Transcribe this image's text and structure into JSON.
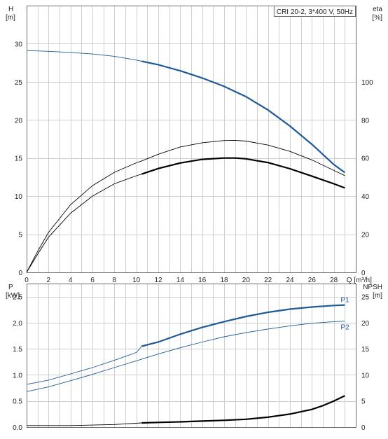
{
  "chart_data": [
    {
      "type": "line",
      "title": "CRI 20-2, 3*400 V, 50Hz",
      "xlabel": "Q [m³/h]",
      "ylabel_left": [
        "H",
        "[m]"
      ],
      "ylabel_right": [
        "eta",
        "[%]"
      ],
      "xlim": [
        0,
        30
      ],
      "ylim": [
        0,
        35
      ],
      "ylim_right": [
        0,
        140
      ],
      "grid": true,
      "x_ticks": [
        "0",
        "2",
        "4",
        "6",
        "8",
        "10",
        "12",
        "14",
        "16",
        "18",
        "20",
        "22",
        "24",
        "26",
        "28"
      ],
      "y_ticks_left": [
        "0",
        "5",
        "10",
        "15",
        "20",
        "25",
        "30"
      ],
      "y_ticks_right": [
        "0",
        "20",
        "40",
        "60",
        "80",
        "100"
      ],
      "series": [
        {
          "axis": "left",
          "color": "#1f5a96",
          "x": [
            0,
            2,
            4,
            6,
            8,
            10,
            10.5,
            12,
            14,
            16,
            18,
            20,
            22,
            24,
            26,
            28,
            29
          ],
          "y": [
            29.1,
            29.0,
            28.85,
            28.65,
            28.35,
            27.85,
            27.7,
            27.25,
            26.45,
            25.5,
            24.4,
            23.05,
            21.3,
            19.2,
            16.8,
            14.15,
            13.1
          ],
          "bold_from": 10.5
        },
        {
          "axis": "right",
          "color": "#000000",
          "x": [
            0,
            1,
            2,
            4,
            6,
            8,
            10,
            10.5,
            12,
            14,
            16,
            18,
            19,
            20,
            22,
            24,
            26,
            28,
            29
          ],
          "y": [
            0,
            11,
            21,
            35.5,
            45.5,
            52.5,
            57.5,
            58.5,
            62,
            65.8,
            68,
            69.2,
            69.3,
            68.9,
            66.8,
            63.5,
            59,
            53.5,
            50.8
          ],
          "bold_from": 99
        },
        {
          "axis": "right",
          "color": "#000000",
          "x": [
            0,
            1,
            2,
            4,
            6,
            8,
            10,
            10.5,
            12,
            14,
            16,
            18,
            19,
            20,
            22,
            24,
            26,
            28,
            29
          ],
          "y": [
            0,
            9.5,
            18.5,
            31,
            40,
            46.5,
            50.7,
            51.6,
            54.5,
            57.4,
            59.3,
            60,
            60,
            59.6,
            57.6,
            54.4,
            50.5,
            46.5,
            44.3
          ],
          "bold_from": 10.5
        }
      ]
    },
    {
      "type": "line",
      "xlabel": "",
      "ylabel_left": [
        "P",
        "[kW]"
      ],
      "ylabel_right": [
        "NPSH",
        "[m]"
      ],
      "xlim": [
        0,
        30
      ],
      "ylim": [
        0,
        2.75
      ],
      "ylim_right": [
        0,
        27.5
      ],
      "grid": true,
      "y_ticks_left": [
        "0.0",
        "0.5",
        "1.0",
        "1.5",
        "2.0",
        "2.5"
      ],
      "y_ticks_right": [
        "0",
        "5",
        "10",
        "15",
        "20",
        "25"
      ],
      "series": [
        {
          "name": "P1",
          "axis": "left",
          "color": "#1f5a96",
          "x": [
            0,
            2,
            4,
            6,
            8,
            10,
            10.5,
            12,
            14,
            16,
            18,
            20,
            22,
            24,
            26,
            28,
            29
          ],
          "y": [
            0.82,
            0.9,
            1.02,
            1.14,
            1.28,
            1.43,
            1.55,
            1.63,
            1.78,
            1.91,
            2.02,
            2.12,
            2.2,
            2.26,
            2.3,
            2.33,
            2.34
          ],
          "bold_from": 10.5
        },
        {
          "name": "P2",
          "axis": "left",
          "color": "#1f5a96",
          "x": [
            0,
            2,
            4,
            6,
            8,
            10,
            12,
            14,
            16,
            18,
            20,
            22,
            24,
            26,
            28,
            29
          ],
          "y": [
            0.68,
            0.77,
            0.89,
            1.01,
            1.14,
            1.27,
            1.4,
            1.52,
            1.63,
            1.73,
            1.81,
            1.88,
            1.94,
            1.99,
            2.02,
            2.03
          ],
          "bold_from": 99
        },
        {
          "axis": "right",
          "color": "#000000",
          "x": [
            0,
            4,
            8,
            10.5,
            12,
            14,
            16,
            18,
            20,
            22,
            24,
            26,
            27,
            28,
            29
          ],
          "y": [
            0.3,
            0.3,
            0.5,
            0.8,
            0.9,
            1.0,
            1.15,
            1.3,
            1.5,
            1.9,
            2.5,
            3.4,
            4.1,
            5.0,
            6.0
          ],
          "bold_from": 10.5
        }
      ]
    }
  ]
}
